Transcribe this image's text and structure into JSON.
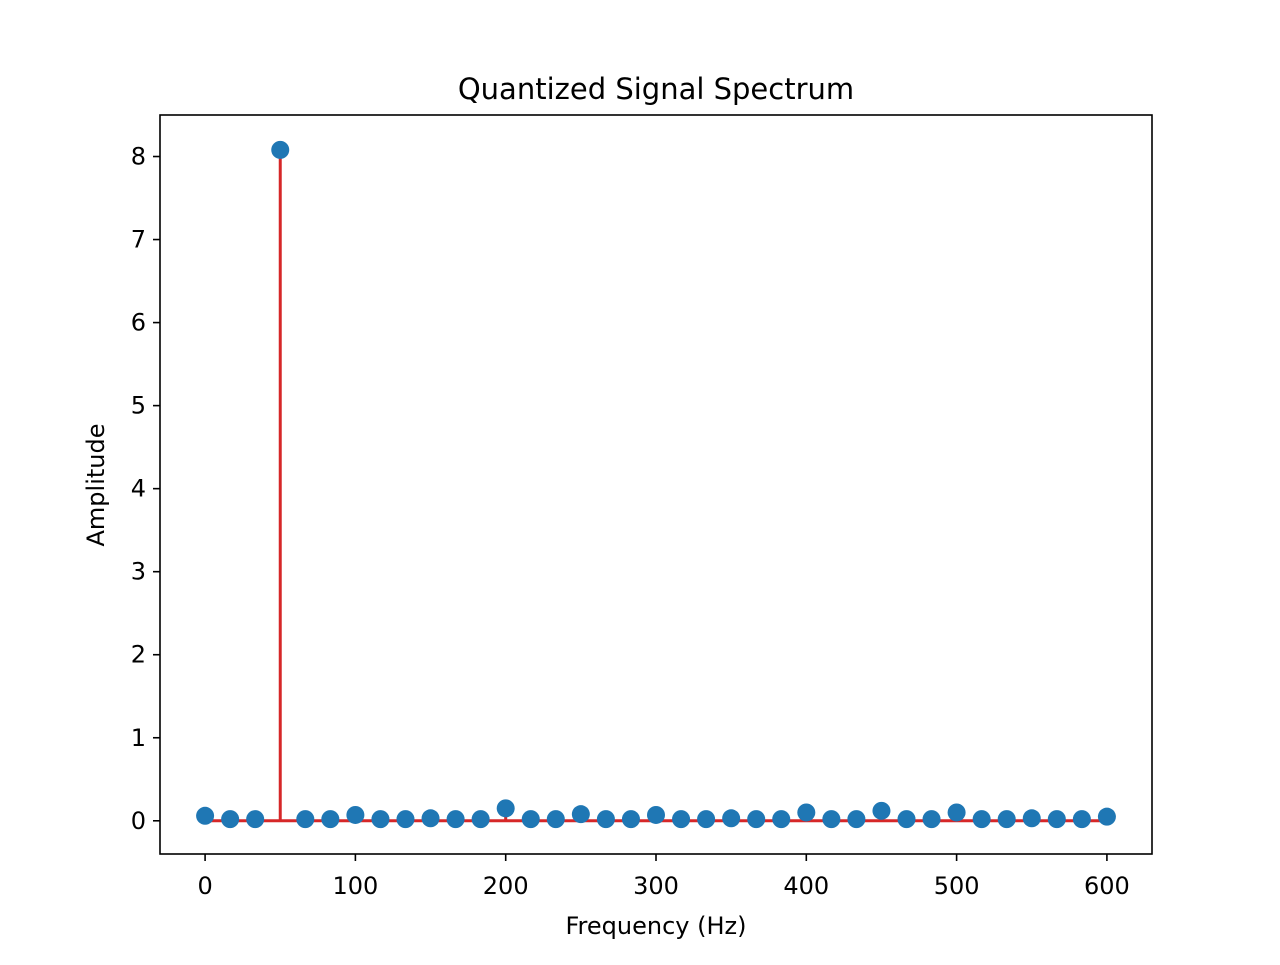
{
  "chart_data": {
    "type": "scatter",
    "subtype": "stem",
    "title": "Quantized Signal Spectrum",
    "xlabel": "Frequency (Hz)",
    "ylabel": "Amplitude",
    "xlim": [
      -30,
      630
    ],
    "ylim": [
      -0.4,
      8.5
    ],
    "xticks": [
      0,
      100,
      200,
      300,
      400,
      500,
      600
    ],
    "yticks": [
      0,
      1,
      2,
      3,
      4,
      5,
      6,
      7,
      8
    ],
    "grid": false,
    "legend": "none",
    "x": [
      0,
      16.67,
      33.33,
      50,
      66.67,
      83.33,
      100,
      116.67,
      133.33,
      150,
      166.67,
      183.33,
      200,
      216.67,
      233.33,
      250,
      266.67,
      283.33,
      300,
      316.67,
      333.33,
      350,
      366.67,
      383.33,
      400,
      416.67,
      433.33,
      450,
      466.67,
      483.33,
      500,
      516.67,
      533.33,
      550,
      566.67,
      583.33,
      600
    ],
    "values": [
      0.06,
      0.02,
      0.02,
      8.08,
      0.02,
      0.02,
      0.07,
      0.02,
      0.02,
      0.03,
      0.02,
      0.02,
      0.15,
      0.02,
      0.02,
      0.08,
      0.02,
      0.02,
      0.07,
      0.02,
      0.02,
      0.03,
      0.02,
      0.02,
      0.1,
      0.02,
      0.02,
      0.12,
      0.02,
      0.02,
      0.1,
      0.02,
      0.02,
      0.03,
      0.02,
      0.02,
      0.05
    ],
    "colors": {
      "marker": "#1f77b4",
      "stem": "#d62728",
      "baseline": "#d62728",
      "axes": "#000000"
    }
  }
}
